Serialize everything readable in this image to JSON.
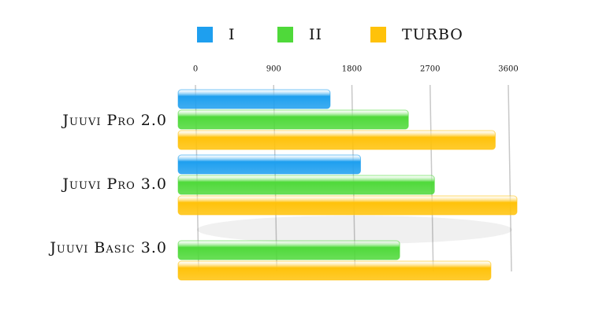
{
  "chart_data": {
    "type": "bar",
    "orientation": "horizontal",
    "categories": [
      "Juuvi Pro 2.0",
      "Juuvi Pro 3.0",
      "Juuvi Basic 3.0"
    ],
    "series": [
      {
        "name": "I",
        "color": "#1e9fef",
        "values": [
          1550,
          1900,
          null
        ]
      },
      {
        "name": "II",
        "color": "#4fd93a",
        "values": [
          2450,
          2750,
          2350
        ]
      },
      {
        "name": "TURBO",
        "color": "#ffc20a",
        "values": [
          3450,
          3700,
          3400
        ]
      }
    ],
    "xlim": [
      0,
      3600
    ],
    "xticks": [
      0,
      900,
      1800,
      2700,
      3600
    ],
    "grid": true,
    "legend": "top"
  }
}
